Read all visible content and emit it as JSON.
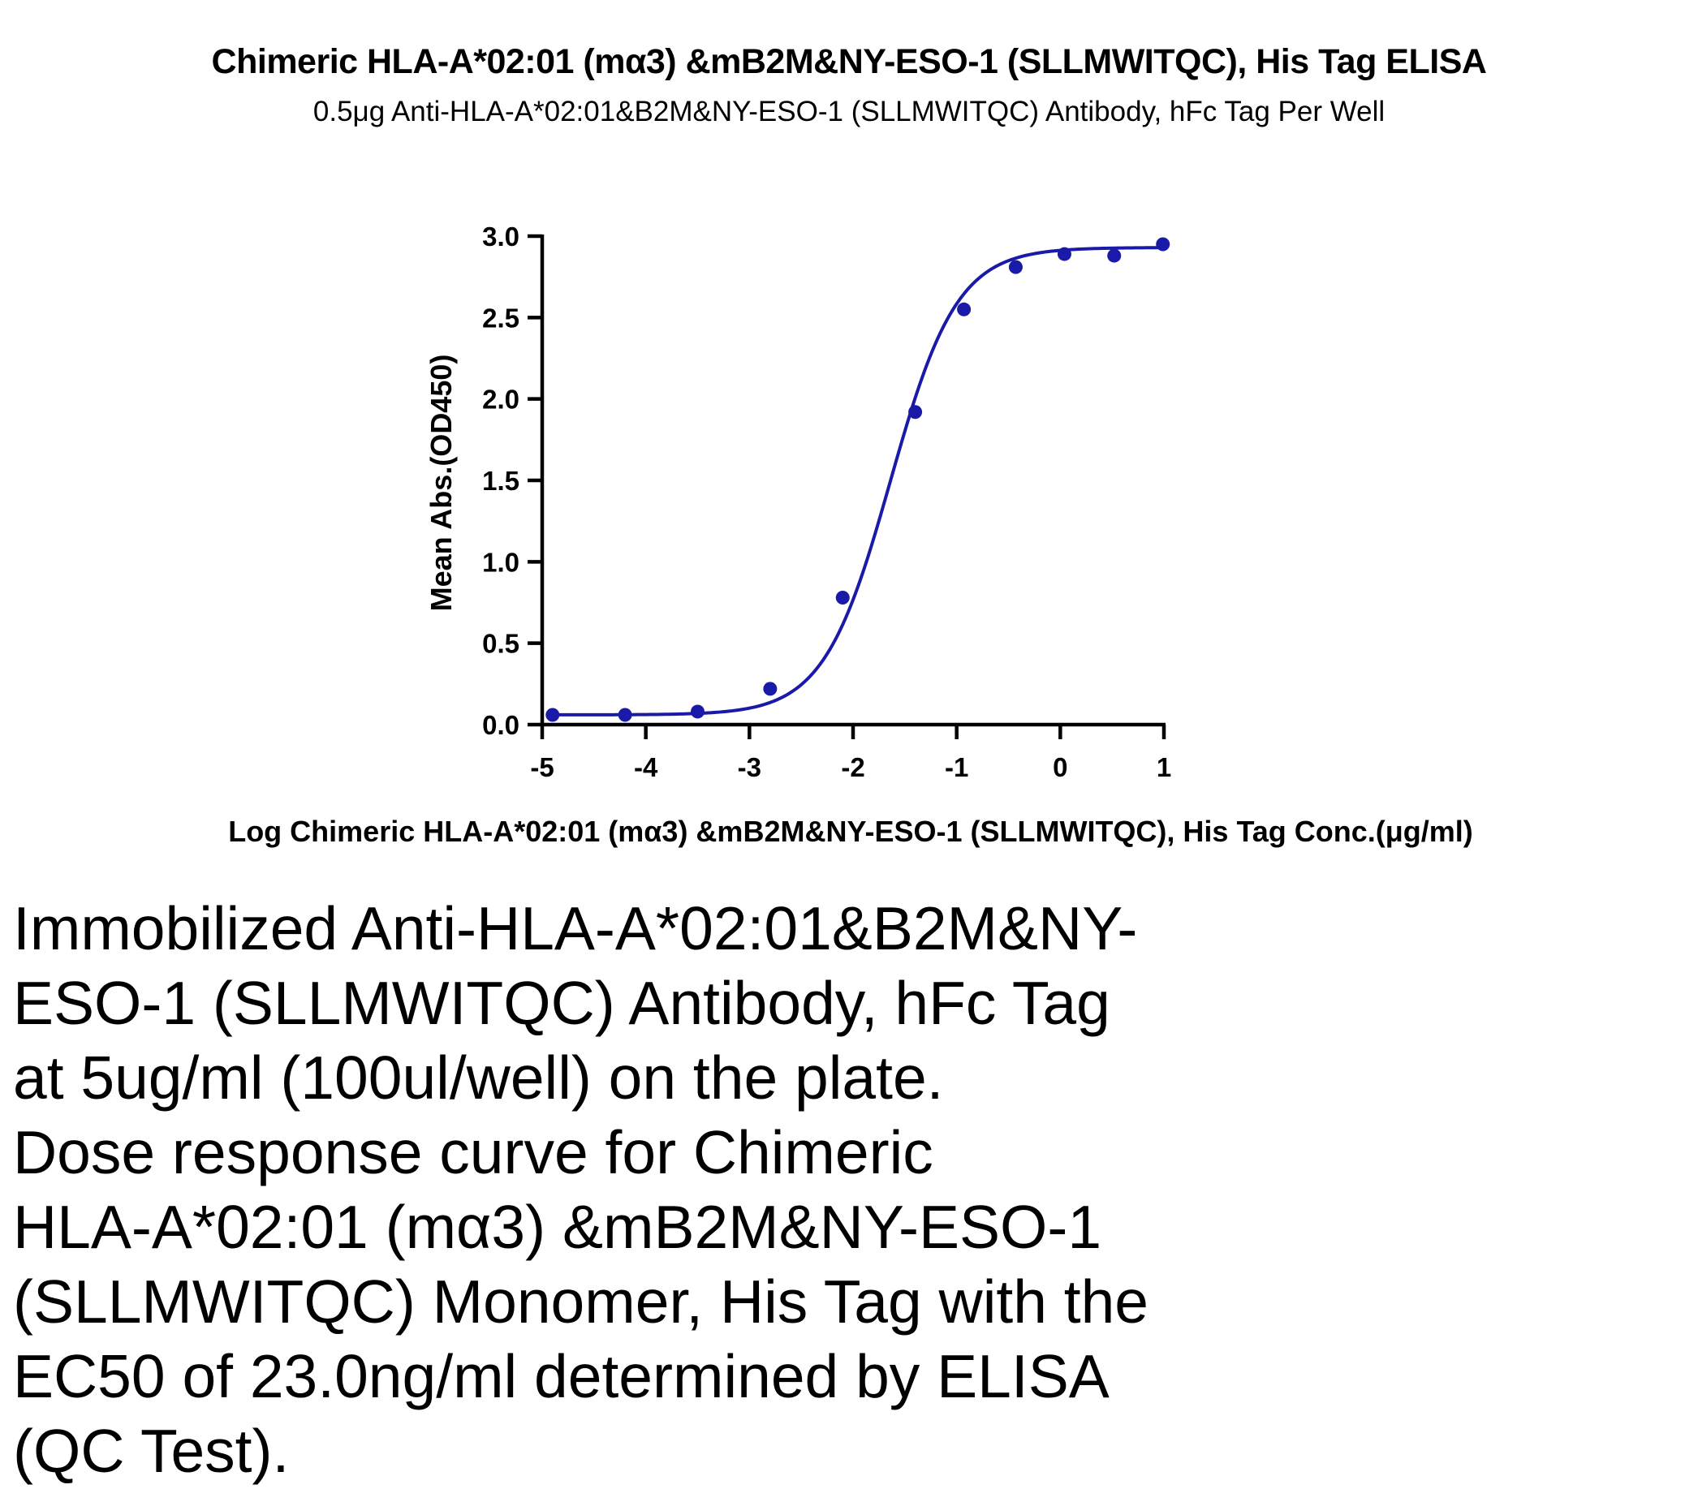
{
  "chart_data": {
    "type": "scatter",
    "title": "Chimeric HLA-A*02:01 (mα3) &mB2M&NY-ESO-1 (SLLMWITQC), His Tag ELISA",
    "subtitle": "0.5μg Anti-HLA-A*02:01&B2M&NY-ESO-1 (SLLMWITQC) Antibody, hFc Tag Per Well",
    "xlabel": "Log Chimeric HLA-A*02:01 (mα3) &mB2M&NY-ESO-1 (SLLMWITQC), His Tag Conc.(μg/ml)",
    "ylabel": "Mean Abs.(OD450)",
    "xlim": [
      -5,
      1
    ],
    "ylim": [
      0,
      3.0
    ],
    "xticks": [
      -5,
      -4,
      -3,
      -2,
      -1,
      0,
      1
    ],
    "xtick_labels": [
      "-5",
      "-4",
      "-3",
      "-2",
      "-1",
      "0",
      "1"
    ],
    "yticks": [
      0,
      0.5,
      1.0,
      1.5,
      2.0,
      2.5,
      3.0
    ],
    "ytick_labels": [
      "0.0",
      "0.5",
      "1.0",
      "1.5",
      "2.0",
      "2.5",
      "3.0"
    ],
    "series": [
      {
        "color": "#1a1aa8",
        "x": [
          -4.9,
          -4.2,
          -3.5,
          -2.8,
          -2.1,
          -1.4,
          -0.93,
          -0.43,
          0.04,
          0.52,
          0.99
        ],
        "y": [
          0.06,
          0.06,
          0.08,
          0.22,
          0.78,
          1.92,
          2.55,
          2.81,
          2.89,
          2.88,
          2.95
        ]
      }
    ],
    "fit_curve": {
      "type": "4PL",
      "bottom": 0.06,
      "top": 2.93,
      "log_ec50": -1.64,
      "hill": 1.35,
      "x_range": [
        -4.9,
        1.0
      ]
    },
    "grid": false
  },
  "caption": "Immobilized Anti-HLA-A*02:01&B2M&NY-\nESO-1 (SLLMWITQC) Antibody, hFc Tag\nat 5ug/ml (100ul/well) on the plate.\nDose response curve for Chimeric\nHLA-A*02:01 (mα3) &mB2M&NY-ESO-1\n(SLLMWITQC) Monomer, His Tag with the\nEC50 of 23.0ng/ml determined by ELISA\n(QC Test)."
}
